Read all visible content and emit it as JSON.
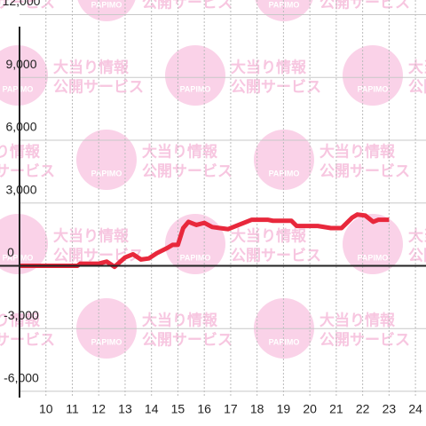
{
  "chart_data": {
    "type": "line",
    "watermark": {
      "brand": "PAPIMO",
      "line1": "大当り情報",
      "line2": "公開サービス"
    },
    "x": [
      9,
      11.2,
      11.3,
      12.0,
      12.3,
      12.6,
      13.0,
      13.3,
      13.6,
      13.9,
      14.2,
      14.6,
      14.8,
      15.0,
      15.2,
      15.4,
      15.7,
      16.0,
      16.3,
      16.9,
      17.3,
      17.8,
      18.4,
      18.6,
      19.3,
      19.5,
      20.3,
      20.8,
      21.2,
      21.6,
      21.8,
      22.1,
      22.4,
      22.6,
      23.0
    ],
    "series": [
      {
        "color": "#e8283c",
        "values": [
          0,
          0,
          100,
          100,
          200,
          -50,
          400,
          550,
          300,
          350,
          600,
          850,
          1000,
          1000,
          1800,
          2100,
          1950,
          2050,
          1850,
          1750,
          1950,
          2200,
          2200,
          2150,
          2150,
          1900,
          1900,
          1800,
          1800,
          2300,
          2450,
          2400,
          2100,
          2200,
          2200
        ]
      }
    ],
    "xlim": [
      9,
      24.4
    ],
    "xticks": [
      10,
      11,
      12,
      13,
      14,
      15,
      16,
      17,
      18,
      19,
      20,
      21,
      22,
      23,
      24
    ],
    "ylim": [
      -6300,
      12700
    ],
    "yticks": [
      {
        "value": -6000,
        "label": "-6,000"
      },
      {
        "value": -3000,
        "label": "-3,000"
      },
      0,
      {
        "value": 3000,
        "label": "3,000"
      },
      {
        "value": 6000,
        "label": "6,000"
      },
      {
        "value": 9000,
        "label": "9,000"
      },
      {
        "value": 12000,
        "label": "12,000"
      }
    ],
    "grid": true
  }
}
